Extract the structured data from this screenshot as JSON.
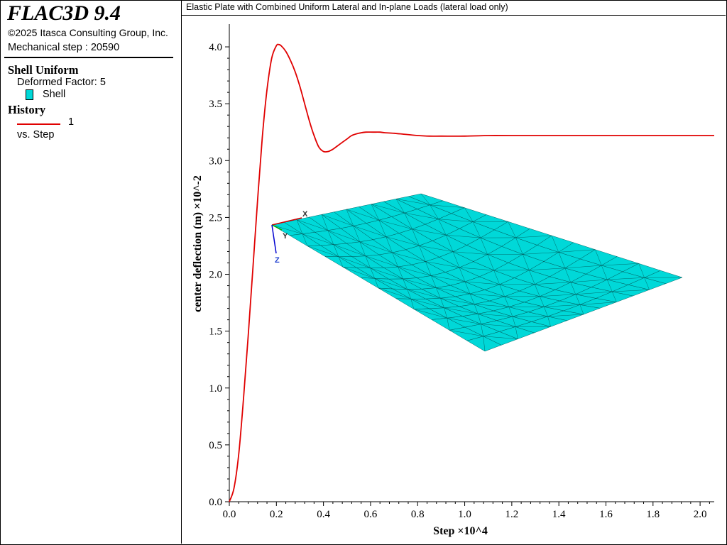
{
  "app": {
    "title": "FLAC3D 9.4",
    "copyright": "©2025 Itasca Consulting Group, Inc.",
    "step_text": "Mechanical step : 20590"
  },
  "legend": {
    "plot_heading": "Shell Uniform",
    "deformed_factor": "Deformed Factor: 5",
    "shell_label": "Shell",
    "history_heading": "History",
    "series_label": "1",
    "vs_label": "vs. Step"
  },
  "colors": {
    "series": "#e00000",
    "shell_fill": "#00d8d8",
    "shell_edge": "#005050"
  },
  "chart_data": {
    "type": "line",
    "title": "Elastic Plate with Combined Uniform Lateral and In-plane Loads (lateral load only)",
    "xlabel": "Step ×10^4",
    "ylabel": "center deflection (m) ×10^-2",
    "xlim": [
      0,
      2.06
    ],
    "ylim": [
      0,
      4.2
    ],
    "xticks": [
      "0.0",
      "0.2",
      "0.4",
      "0.6",
      "0.8",
      "1.0",
      "1.2",
      "1.4",
      "1.6",
      "1.8",
      "2.0"
    ],
    "yticks": [
      "0.0",
      "0.5",
      "1.0",
      "1.5",
      "2.0",
      "2.5",
      "3.0",
      "3.5",
      "4.0"
    ],
    "grid": false,
    "series": [
      {
        "name": "1",
        "x": [
          0,
          0.02,
          0.04,
          0.06,
          0.08,
          0.1,
          0.12,
          0.14,
          0.16,
          0.18,
          0.2,
          0.21,
          0.22,
          0.24,
          0.26,
          0.28,
          0.3,
          0.32,
          0.34,
          0.36,
          0.38,
          0.4,
          0.42,
          0.44,
          0.46,
          0.48,
          0.5,
          0.52,
          0.55,
          0.58,
          0.61,
          0.64,
          0.66,
          0.7,
          0.75,
          0.8,
          0.85,
          0.9,
          1.0,
          1.1,
          1.2,
          1.4,
          1.6,
          1.8,
          2.0,
          2.06
        ],
        "y": [
          0,
          0.12,
          0.42,
          0.9,
          1.45,
          2.05,
          2.65,
          3.2,
          3.62,
          3.9,
          4.01,
          4.02,
          4.01,
          3.96,
          3.88,
          3.78,
          3.65,
          3.5,
          3.35,
          3.22,
          3.12,
          3.08,
          3.08,
          3.1,
          3.13,
          3.16,
          3.19,
          3.22,
          3.24,
          3.25,
          3.25,
          3.25,
          3.245,
          3.24,
          3.23,
          3.22,
          3.215,
          3.215,
          3.215,
          3.22,
          3.22,
          3.22,
          3.22,
          3.22,
          3.22,
          3.22
        ]
      }
    ],
    "inset": {
      "type": "shell-mesh",
      "axes_labels": [
        "X",
        "Y",
        "Z"
      ]
    }
  }
}
